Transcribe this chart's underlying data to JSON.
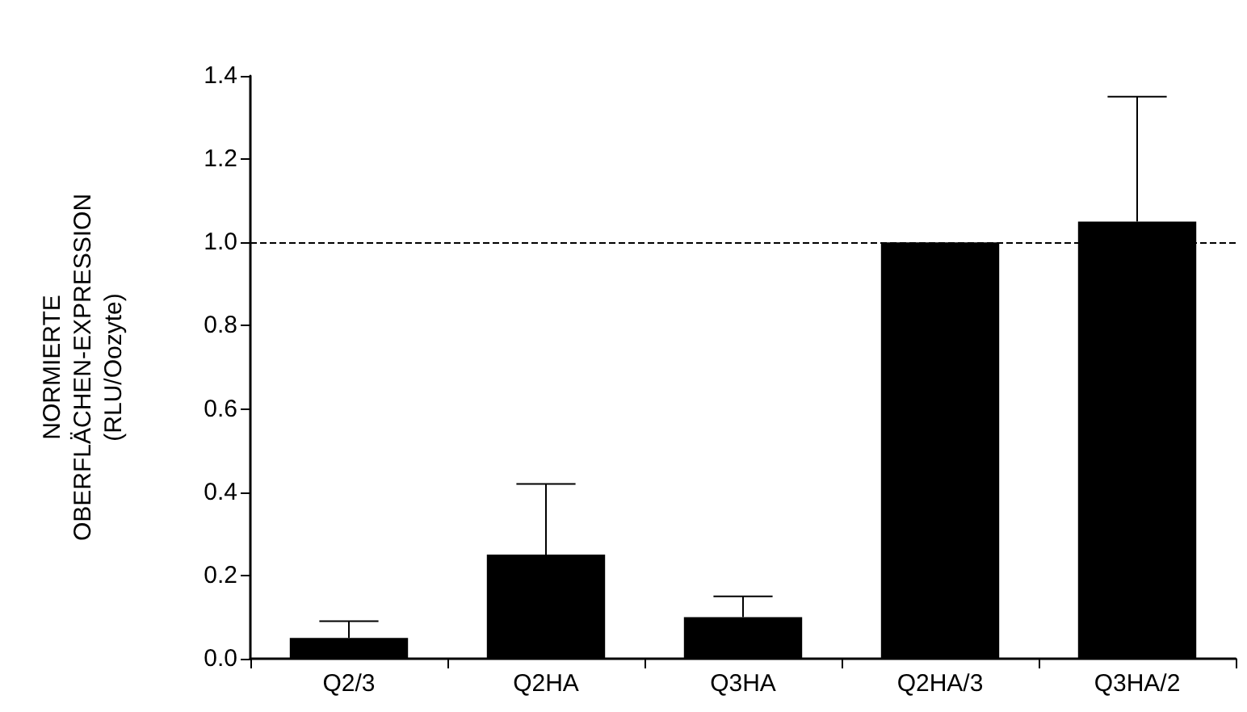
{
  "chart_data": {
    "type": "bar",
    "ylabel": "NORMIERTE\nOBERFLÄCHEN-EXPRESSION\n(RLU/Oozyte)",
    "categories": [
      "Q2/3",
      "Q2HA",
      "Q3HA",
      "Q2HA/3",
      "Q3HA/2"
    ],
    "values": [
      0.05,
      0.25,
      0.1,
      1.0,
      1.05
    ],
    "errors": [
      [
        0.05,
        0.09
      ],
      [
        0.25,
        0.42
      ],
      [
        0.1,
        0.15
      ],
      null,
      [
        1.05,
        1.35
      ]
    ],
    "color": "#000000",
    "ylim": [
      0,
      1.4
    ],
    "yticks": [
      {
        "value": 0,
        "label": "0.0"
      },
      0.2,
      0.4,
      0.6,
      0.8,
      {
        "value": 1,
        "label": "1.0"
      },
      1.2,
      1.4
    ],
    "ref_lines": [
      {
        "axis": "y",
        "value": 1.0,
        "line_style": "dashed",
        "color": "#000000"
      }
    ],
    "grid": false
  }
}
